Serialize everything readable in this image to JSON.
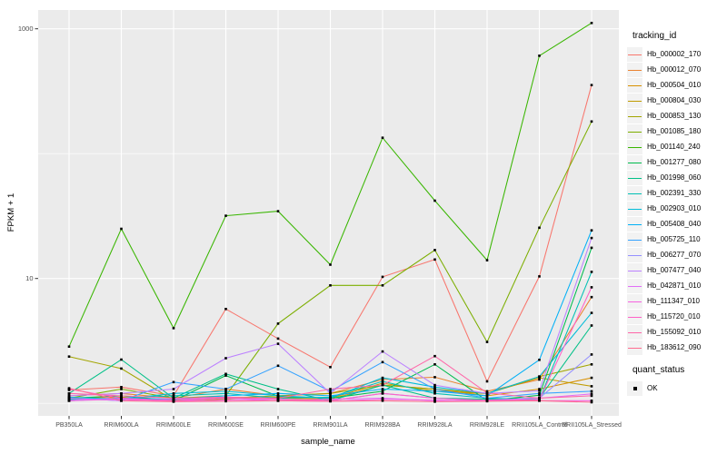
{
  "figure": {
    "background": "#FFFFFF",
    "panel_bg": "#EBEBEB",
    "grid_color": "#FFFFFF",
    "axis_text_color": "#4D4D4D",
    "title_text_color": "#000000",
    "point_color": "#000000"
  },
  "axes": {
    "x_title": "sample_name",
    "y_title": "FPKM + 1",
    "y_tick_labels": [
      "1000",
      "10"
    ],
    "y_tick_values": [
      1000,
      10
    ],
    "y_minor_values": [
      100,
      1
    ]
  },
  "legend": {
    "tracking_title": "tracking_id",
    "quant_title": "quant_status",
    "quant_items": [
      {
        "label": "OK",
        "marker": "black-square"
      }
    ],
    "key_bg": "#F2F2F2"
  },
  "chart_data": {
    "type": "line",
    "title": "",
    "xlabel": "sample_name",
    "ylabel": "FPKM + 1",
    "yscale": "log10",
    "ylim": [
      0.85,
      1350
    ],
    "grid": true,
    "legend_position": "right",
    "categories": [
      "PB350LA",
      "RRIM600LA",
      "RRIM600LE",
      "RRIM600SE",
      "RRIM600PE",
      "RRIM901LA",
      "RRIM928BA",
      "RRIM928LA",
      "RRIM928LE",
      "RRII105LA_Control",
      "RRII105LA_Stressed"
    ],
    "series": [
      {
        "name": "Hb_000002_170",
        "color": "#F8766D",
        "values": [
          1.28,
          1.35,
          1.15,
          5.7,
          3.3,
          1.95,
          10.3,
          14.2,
          1.5,
          10.4,
          354
        ]
      },
      {
        "name": "Hb_000012_070",
        "color": "#EA8331",
        "values": [
          1.15,
          1.2,
          1.1,
          1.3,
          1.15,
          1.2,
          1.55,
          1.62,
          1.25,
          1.55,
          7.1
        ]
      },
      {
        "name": "Hb_000504_010",
        "color": "#D89000",
        "values": [
          1.1,
          1.12,
          1.06,
          1.12,
          1.1,
          1.08,
          1.4,
          1.3,
          1.15,
          1.3,
          1.6
        ]
      },
      {
        "name": "Hb_000804_030",
        "color": "#C09B00",
        "values": [
          1.05,
          1.1,
          1.04,
          1.08,
          1.12,
          1.1,
          1.45,
          1.25,
          1.2,
          1.6,
          1.37
        ]
      },
      {
        "name": "Hb_000853_130",
        "color": "#A3A500",
        "values": [
          2.37,
          1.9,
          1.06,
          1.1,
          1.15,
          1.2,
          1.4,
          1.3,
          1.2,
          1.64,
          2.05
        ]
      },
      {
        "name": "Hb_001085_180",
        "color": "#7CAE00",
        "values": [
          1.1,
          1.3,
          1.1,
          1.15,
          4.35,
          8.8,
          8.8,
          16.9,
          3.1,
          25.5,
          181
        ]
      },
      {
        "name": "Hb_001140_240",
        "color": "#39B600",
        "values": [
          2.85,
          25,
          4.0,
          31.8,
          34.6,
          12.9,
          134,
          42,
          14,
          608,
          1113
        ]
      },
      {
        "name": "Hb_001277_080",
        "color": "#00BB4E",
        "values": [
          1.1,
          1.15,
          1.05,
          1.67,
          1.14,
          1.1,
          1.25,
          2.05,
          1.05,
          1.16,
          17.6
        ]
      },
      {
        "name": "Hb_001998_060",
        "color": "#00C087",
        "values": [
          1.2,
          2.24,
          1.1,
          1.72,
          1.3,
          1.05,
          1.4,
          1.1,
          1.08,
          1.1,
          4.2
        ]
      },
      {
        "name": "Hb_002391_330",
        "color": "#00C0B4",
        "values": [
          1.08,
          1.1,
          1.15,
          1.2,
          1.1,
          1.12,
          1.5,
          1.2,
          1.1,
          1.07,
          11.3
        ]
      },
      {
        "name": "Hb_002903_010",
        "color": "#00BCD8",
        "values": [
          1.12,
          1.08,
          1.2,
          1.25,
          1.15,
          1.1,
          1.6,
          1.35,
          1.2,
          1.64,
          5.3
        ]
      },
      {
        "name": "Hb_005408_040",
        "color": "#00B0F6",
        "values": [
          1.05,
          1.1,
          1.08,
          1.15,
          1.2,
          1.15,
          1.3,
          1.25,
          1.15,
          2.23,
          24.3
        ]
      },
      {
        "name": "Hb_005725_110",
        "color": "#35A2FF",
        "values": [
          1.1,
          1.05,
          1.48,
          1.3,
          2.0,
          1.25,
          2.14,
          1.3,
          1.1,
          1.2,
          1.25
        ]
      },
      {
        "name": "Hb_006277_070",
        "color": "#9590FF",
        "values": [
          1.06,
          1.1,
          1.05,
          1.1,
          1.08,
          1.05,
          1.2,
          1.1,
          1.05,
          1.1,
          2.46
        ]
      },
      {
        "name": "Hb_007477_040",
        "color": "#BC81FF",
        "values": [
          1.15,
          1.2,
          1.3,
          2.3,
          3.0,
          1.2,
          2.6,
          1.4,
          1.2,
          1.26,
          21.1
        ]
      },
      {
        "name": "Hb_042871_010",
        "color": "#E26EF7",
        "values": [
          1.1,
          1.05,
          1.08,
          1.1,
          1.05,
          1.08,
          1.1,
          1.05,
          1.06,
          1.1,
          1.19
        ]
      },
      {
        "name": "Hb_111347_010",
        "color": "#F763E0",
        "values": [
          1.05,
          1.08,
          1.04,
          1.06,
          1.05,
          1.04,
          1.08,
          1.06,
          1.05,
          1.05,
          1.05
        ]
      },
      {
        "name": "Hb_115720_010",
        "color": "#FF61C7",
        "values": [
          1.3,
          1.1,
          1.05,
          1.1,
          1.08,
          1.05,
          1.2,
          1.1,
          1.05,
          1.07,
          8.5
        ]
      },
      {
        "name": "Hb_155092_010",
        "color": "#FF66A8",
        "values": [
          1.2,
          1.15,
          1.1,
          1.12,
          1.1,
          1.3,
          1.4,
          2.39,
          1.21,
          1.1,
          1.15
        ]
      },
      {
        "name": "Hb_183612_090",
        "color": "#FF6C90",
        "values": [
          1.32,
          1.05,
          1.03,
          1.04,
          1.05,
          1.04,
          1.05,
          1.03,
          1.04,
          1.05,
          1.02
        ]
      }
    ]
  }
}
